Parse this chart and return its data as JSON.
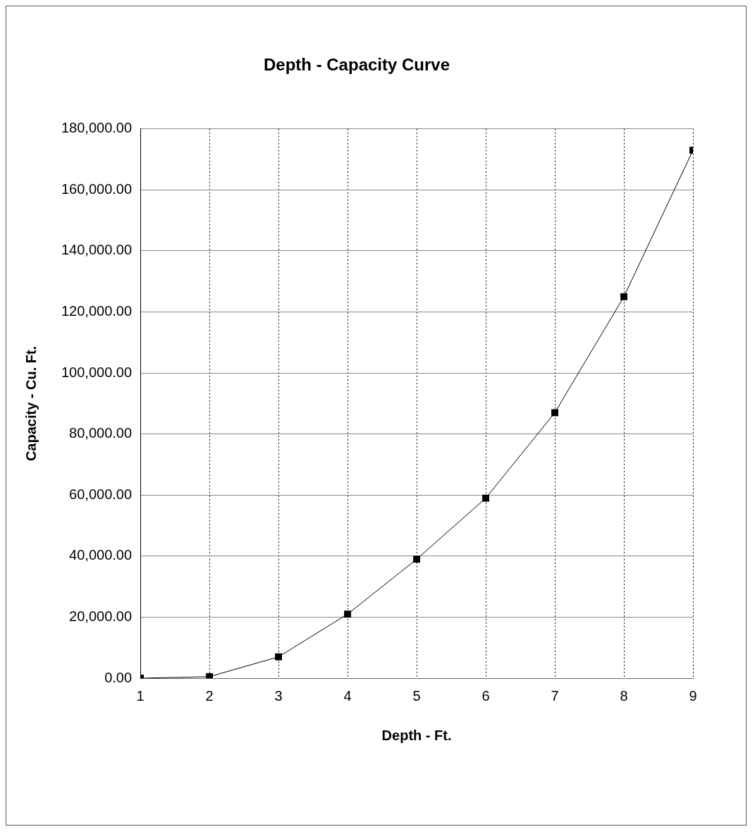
{
  "chart_data": {
    "type": "line",
    "title": "Depth - Capacity Curve",
    "xlabel": "Depth - Ft.",
    "ylabel": "Capacity - Cu. Ft.",
    "x": [
      1,
      2,
      3,
      4,
      5,
      6,
      7,
      8,
      9
    ],
    "series": [
      {
        "color": "#000000",
        "values": [
          0,
          500,
          7000,
          21000,
          39000,
          59000,
          87000,
          125000,
          173000
        ]
      }
    ],
    "xlim": [
      1,
      9
    ],
    "xticks": [
      1,
      2,
      3,
      4,
      5,
      6,
      7,
      8,
      9
    ],
    "ylim": [
      0,
      180000
    ],
    "yticks": [
      {
        "value": 0,
        "label": "0.00"
      },
      {
        "value": 20000,
        "label": "20,000.00"
      },
      {
        "value": 40000,
        "label": "40,000.00"
      },
      {
        "value": 60000,
        "label": "60,000.00"
      },
      {
        "value": 80000,
        "label": "80,000.00"
      },
      {
        "value": 100000,
        "label": "100,000.00"
      },
      {
        "value": 120000,
        "label": "120,000.00"
      },
      {
        "value": 140000,
        "label": "140,000.00"
      },
      {
        "value": 160000,
        "label": "160,000.00"
      },
      {
        "value": 180000,
        "label": "180,000.00"
      }
    ],
    "grid": true,
    "legend": false,
    "marker": "square",
    "line_style": "solid"
  }
}
